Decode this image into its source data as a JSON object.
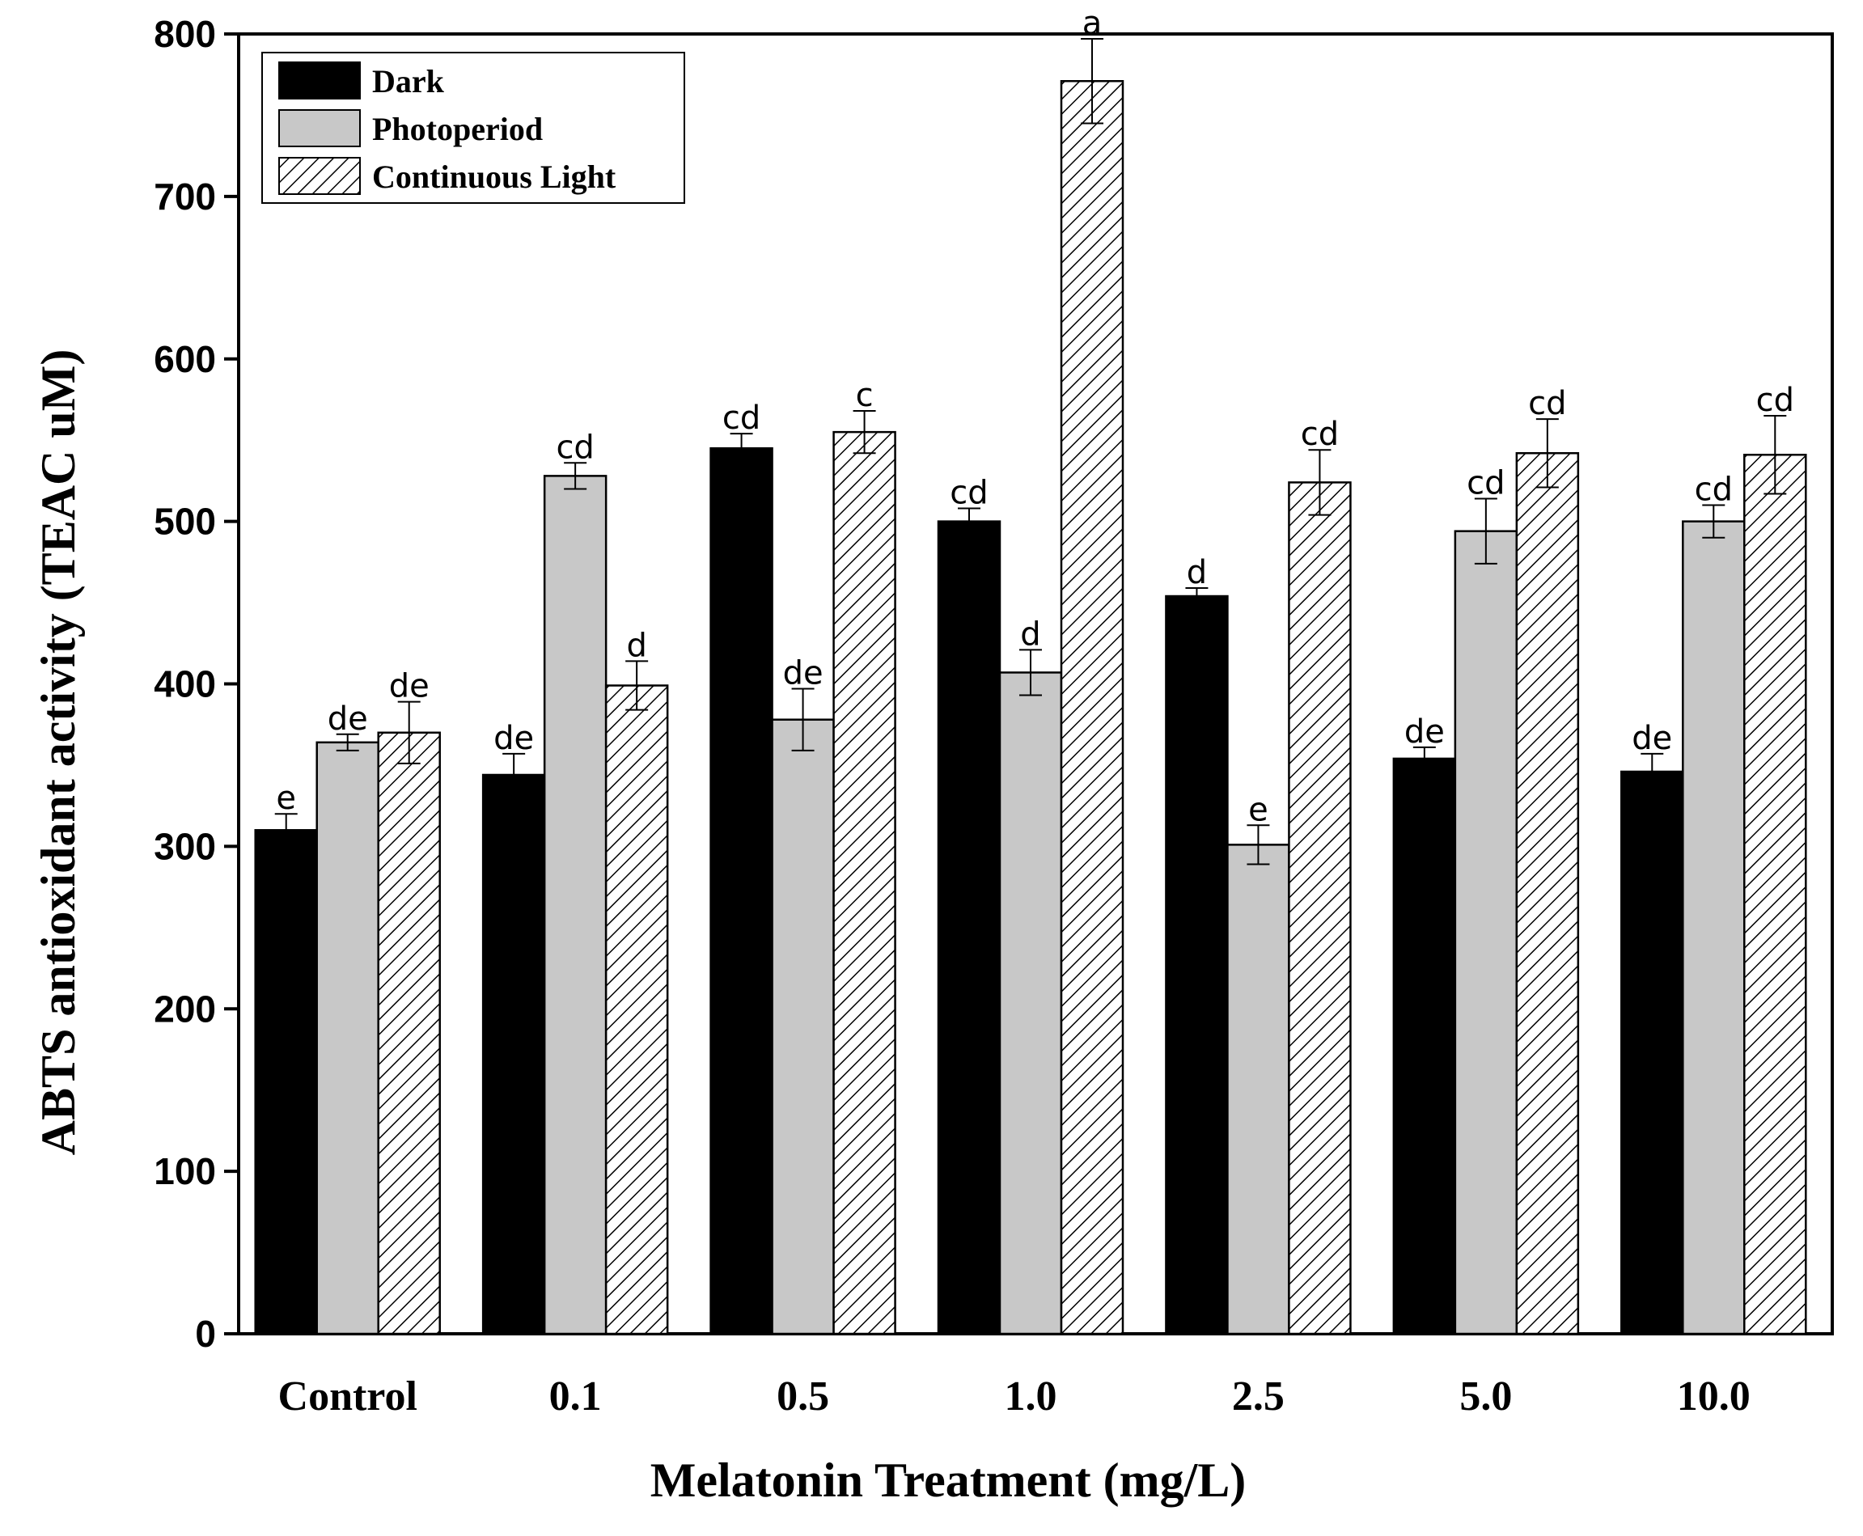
{
  "chart_data": {
    "type": "bar",
    "title": "",
    "xlabel": "Melatonin Treatment (mg/L)",
    "ylabel": "ABTS antioxidant activity (TEAC uM)",
    "ylim": [
      0,
      800
    ],
    "yticks": [
      0,
      100,
      200,
      300,
      400,
      500,
      600,
      700,
      800
    ],
    "categories": [
      "Control",
      "0.1",
      "0.5",
      "1.0",
      "2.5",
      "5.0",
      "10.0"
    ],
    "legend_position": "top-left",
    "series": [
      {
        "name": "Dark",
        "fill": "solid",
        "color": "#000000",
        "values": [
          310,
          344,
          545,
          500,
          454,
          354,
          346
        ],
        "errors": [
          10,
          13,
          9,
          8,
          5,
          7,
          11
        ],
        "labels": [
          "e",
          "de",
          "cd",
          "cd",
          "d",
          "de",
          "de"
        ]
      },
      {
        "name": "Photoperiod",
        "fill": "solid",
        "color": "#c8c8c8",
        "values": [
          364,
          528,
          378,
          407,
          301,
          494,
          500
        ],
        "errors": [
          5,
          8,
          19,
          14,
          12,
          20,
          10
        ],
        "labels": [
          "de",
          "cd",
          "de",
          "d",
          "e",
          "cd",
          "cd"
        ]
      },
      {
        "name": "Continuous Light",
        "fill": "hatch",
        "color": "#ffffff",
        "values": [
          370,
          399,
          555,
          771,
          524,
          542,
          541
        ],
        "errors": [
          19,
          15,
          13,
          26,
          20,
          21,
          24
        ],
        "labels": [
          "de",
          "d",
          "c",
          "a",
          "cd",
          "cd",
          "cd"
        ]
      }
    ]
  }
}
